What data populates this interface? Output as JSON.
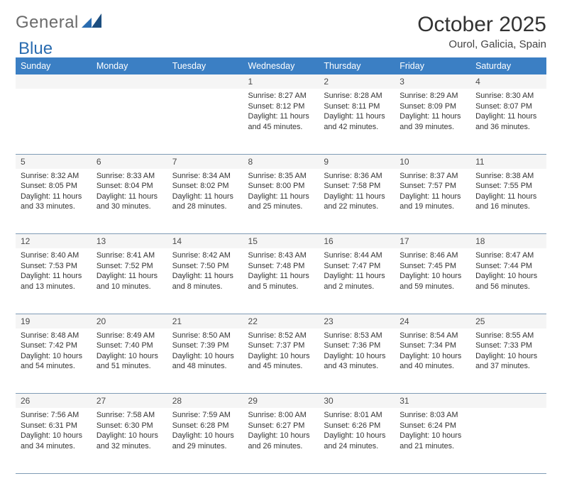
{
  "brand": {
    "word1": "General",
    "word2": "Blue"
  },
  "header": {
    "month": "October 2025",
    "location": "Ourol, Galicia, Spain"
  },
  "weekdays": [
    "Sunday",
    "Monday",
    "Tuesday",
    "Wednesday",
    "Thursday",
    "Friday",
    "Saturday"
  ],
  "colors": {
    "header_bg": "#3b7fc4",
    "header_text": "#ffffff",
    "daynum_bg": "#f5f5f5",
    "row_divider": "#7f9bb5"
  },
  "weeks": [
    {
      "nums": [
        "",
        "",
        "",
        "1",
        "2",
        "3",
        "4"
      ],
      "cells": [
        {},
        {},
        {},
        {
          "sunrise": "Sunrise: 8:27 AM",
          "sunset": "Sunset: 8:12 PM",
          "daylight": "Daylight: 11 hours and 45 minutes."
        },
        {
          "sunrise": "Sunrise: 8:28 AM",
          "sunset": "Sunset: 8:11 PM",
          "daylight": "Daylight: 11 hours and 42 minutes."
        },
        {
          "sunrise": "Sunrise: 8:29 AM",
          "sunset": "Sunset: 8:09 PM",
          "daylight": "Daylight: 11 hours and 39 minutes."
        },
        {
          "sunrise": "Sunrise: 8:30 AM",
          "sunset": "Sunset: 8:07 PM",
          "daylight": "Daylight: 11 hours and 36 minutes."
        }
      ]
    },
    {
      "nums": [
        "5",
        "6",
        "7",
        "8",
        "9",
        "10",
        "11"
      ],
      "cells": [
        {
          "sunrise": "Sunrise: 8:32 AM",
          "sunset": "Sunset: 8:05 PM",
          "daylight": "Daylight: 11 hours and 33 minutes."
        },
        {
          "sunrise": "Sunrise: 8:33 AM",
          "sunset": "Sunset: 8:04 PM",
          "daylight": "Daylight: 11 hours and 30 minutes."
        },
        {
          "sunrise": "Sunrise: 8:34 AM",
          "sunset": "Sunset: 8:02 PM",
          "daylight": "Daylight: 11 hours and 28 minutes."
        },
        {
          "sunrise": "Sunrise: 8:35 AM",
          "sunset": "Sunset: 8:00 PM",
          "daylight": "Daylight: 11 hours and 25 minutes."
        },
        {
          "sunrise": "Sunrise: 8:36 AM",
          "sunset": "Sunset: 7:58 PM",
          "daylight": "Daylight: 11 hours and 22 minutes."
        },
        {
          "sunrise": "Sunrise: 8:37 AM",
          "sunset": "Sunset: 7:57 PM",
          "daylight": "Daylight: 11 hours and 19 minutes."
        },
        {
          "sunrise": "Sunrise: 8:38 AM",
          "sunset": "Sunset: 7:55 PM",
          "daylight": "Daylight: 11 hours and 16 minutes."
        }
      ]
    },
    {
      "nums": [
        "12",
        "13",
        "14",
        "15",
        "16",
        "17",
        "18"
      ],
      "cells": [
        {
          "sunrise": "Sunrise: 8:40 AM",
          "sunset": "Sunset: 7:53 PM",
          "daylight": "Daylight: 11 hours and 13 minutes."
        },
        {
          "sunrise": "Sunrise: 8:41 AM",
          "sunset": "Sunset: 7:52 PM",
          "daylight": "Daylight: 11 hours and 10 minutes."
        },
        {
          "sunrise": "Sunrise: 8:42 AM",
          "sunset": "Sunset: 7:50 PM",
          "daylight": "Daylight: 11 hours and 8 minutes."
        },
        {
          "sunrise": "Sunrise: 8:43 AM",
          "sunset": "Sunset: 7:48 PM",
          "daylight": "Daylight: 11 hours and 5 minutes."
        },
        {
          "sunrise": "Sunrise: 8:44 AM",
          "sunset": "Sunset: 7:47 PM",
          "daylight": "Daylight: 11 hours and 2 minutes."
        },
        {
          "sunrise": "Sunrise: 8:46 AM",
          "sunset": "Sunset: 7:45 PM",
          "daylight": "Daylight: 10 hours and 59 minutes."
        },
        {
          "sunrise": "Sunrise: 8:47 AM",
          "sunset": "Sunset: 7:44 PM",
          "daylight": "Daylight: 10 hours and 56 minutes."
        }
      ]
    },
    {
      "nums": [
        "19",
        "20",
        "21",
        "22",
        "23",
        "24",
        "25"
      ],
      "cells": [
        {
          "sunrise": "Sunrise: 8:48 AM",
          "sunset": "Sunset: 7:42 PM",
          "daylight": "Daylight: 10 hours and 54 minutes."
        },
        {
          "sunrise": "Sunrise: 8:49 AM",
          "sunset": "Sunset: 7:40 PM",
          "daylight": "Daylight: 10 hours and 51 minutes."
        },
        {
          "sunrise": "Sunrise: 8:50 AM",
          "sunset": "Sunset: 7:39 PM",
          "daylight": "Daylight: 10 hours and 48 minutes."
        },
        {
          "sunrise": "Sunrise: 8:52 AM",
          "sunset": "Sunset: 7:37 PM",
          "daylight": "Daylight: 10 hours and 45 minutes."
        },
        {
          "sunrise": "Sunrise: 8:53 AM",
          "sunset": "Sunset: 7:36 PM",
          "daylight": "Daylight: 10 hours and 43 minutes."
        },
        {
          "sunrise": "Sunrise: 8:54 AM",
          "sunset": "Sunset: 7:34 PM",
          "daylight": "Daylight: 10 hours and 40 minutes."
        },
        {
          "sunrise": "Sunrise: 8:55 AM",
          "sunset": "Sunset: 7:33 PM",
          "daylight": "Daylight: 10 hours and 37 minutes."
        }
      ]
    },
    {
      "nums": [
        "26",
        "27",
        "28",
        "29",
        "30",
        "31",
        ""
      ],
      "cells": [
        {
          "sunrise": "Sunrise: 7:56 AM",
          "sunset": "Sunset: 6:31 PM",
          "daylight": "Daylight: 10 hours and 34 minutes."
        },
        {
          "sunrise": "Sunrise: 7:58 AM",
          "sunset": "Sunset: 6:30 PM",
          "daylight": "Daylight: 10 hours and 32 minutes."
        },
        {
          "sunrise": "Sunrise: 7:59 AM",
          "sunset": "Sunset: 6:28 PM",
          "daylight": "Daylight: 10 hours and 29 minutes."
        },
        {
          "sunrise": "Sunrise: 8:00 AM",
          "sunset": "Sunset: 6:27 PM",
          "daylight": "Daylight: 10 hours and 26 minutes."
        },
        {
          "sunrise": "Sunrise: 8:01 AM",
          "sunset": "Sunset: 6:26 PM",
          "daylight": "Daylight: 10 hours and 24 minutes."
        },
        {
          "sunrise": "Sunrise: 8:03 AM",
          "sunset": "Sunset: 6:24 PM",
          "daylight": "Daylight: 10 hours and 21 minutes."
        },
        {}
      ]
    }
  ]
}
